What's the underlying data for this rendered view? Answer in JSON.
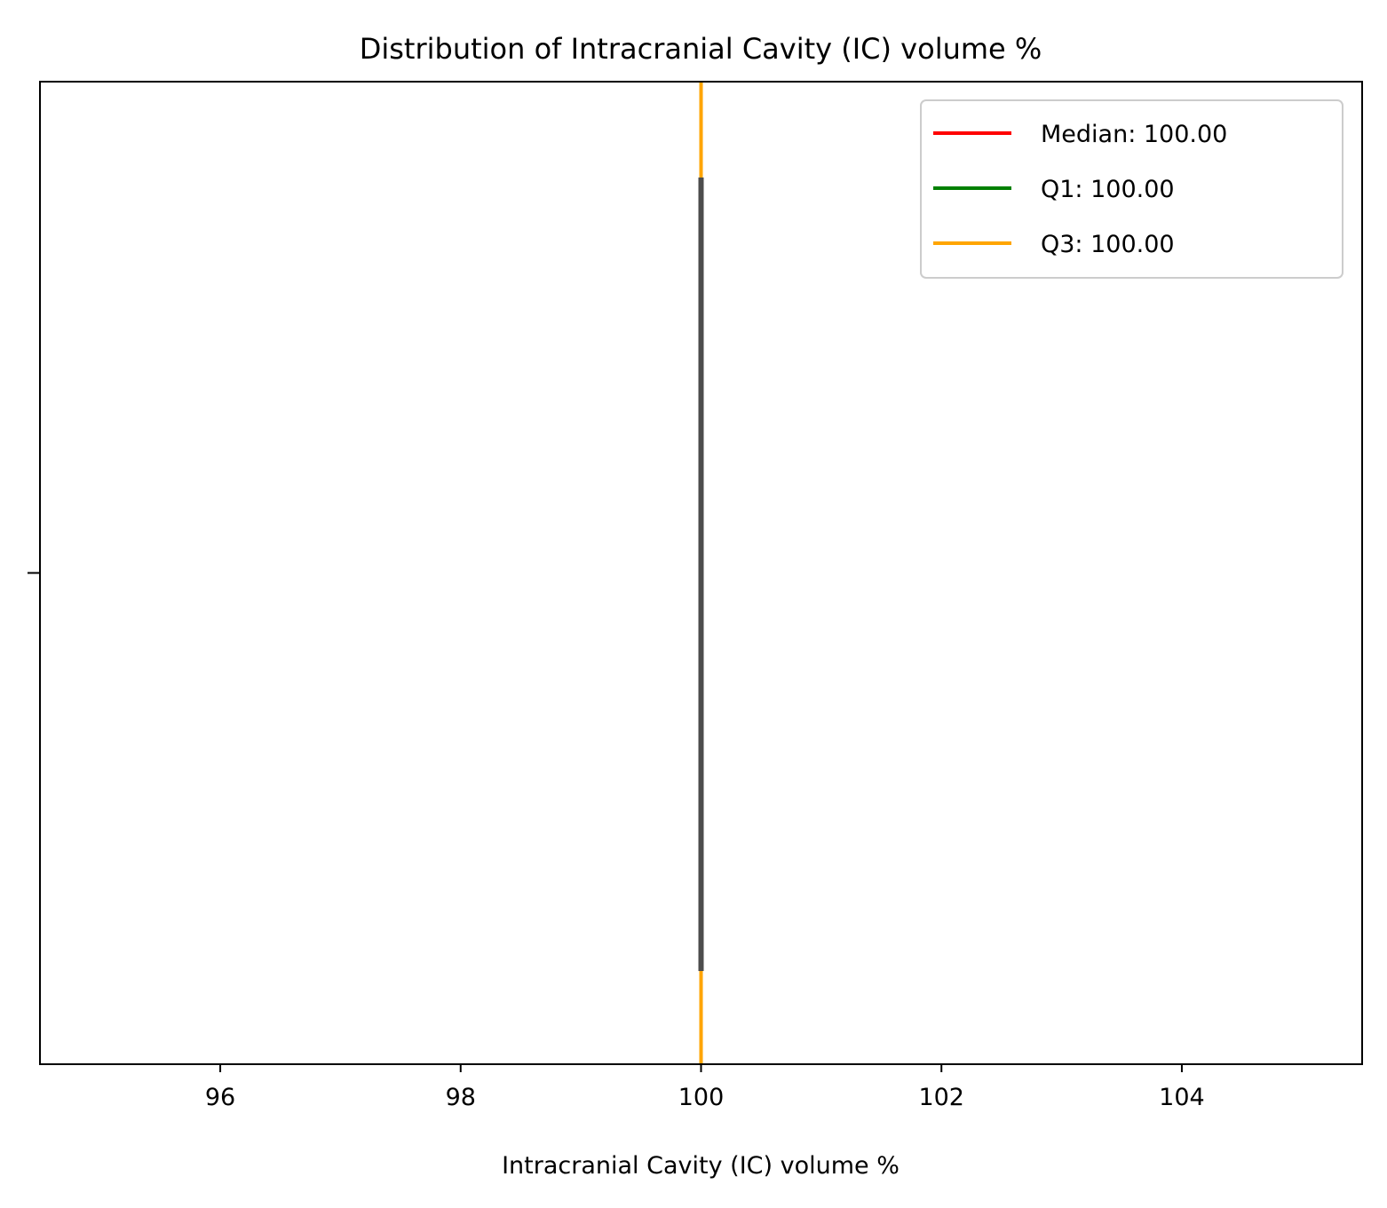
{
  "chart_data": {
    "type": "box",
    "title": "Distribution of Intracranial Cavity (IC) volume %",
    "xlabel": "Intracranial Cavity (IC) volume %",
    "ylabel": "",
    "xlim": [
      94.5,
      105.5
    ],
    "xticks": [
      96,
      98,
      100,
      102,
      104
    ],
    "yticks": [
      ""
    ],
    "grid": false,
    "orientation": "horizontal",
    "box": {
      "min": 100,
      "q1": 100,
      "median": 100,
      "q3": 100,
      "max": 100,
      "color": "#4d4d4d"
    },
    "reference_lines": [
      {
        "name": "Median: 100.00",
        "value": 100,
        "color": "#ff0000"
      },
      {
        "name": "Q1: 100.00",
        "value": 100,
        "color": "#008000"
      },
      {
        "name": "Q3: 100.00",
        "value": 100,
        "color": "#ffa500"
      }
    ],
    "legend": {
      "position": "top-right",
      "entries": [
        "Median: 100.00",
        "Q1: 100.00",
        "Q3: 100.00"
      ]
    }
  }
}
